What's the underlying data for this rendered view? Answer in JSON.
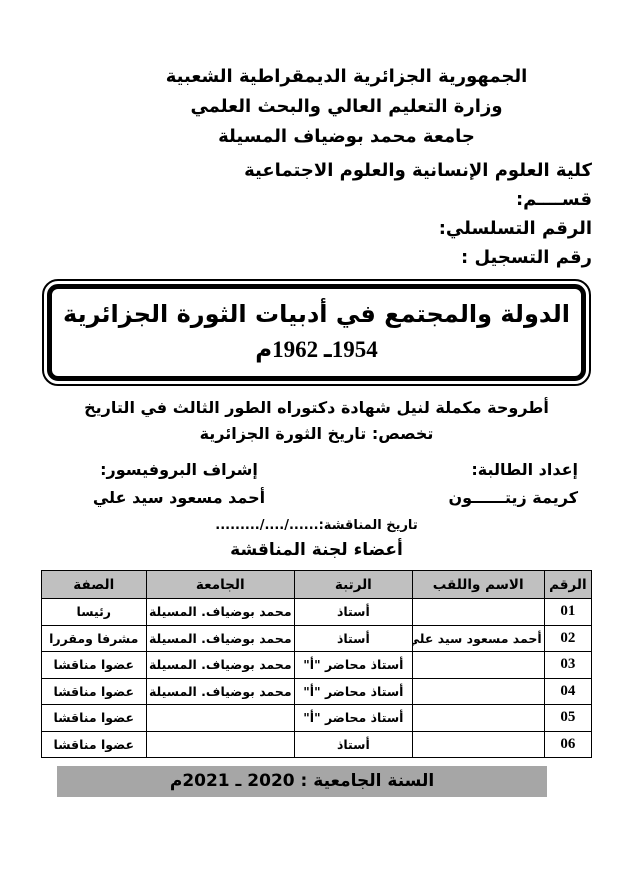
{
  "header_lines": [
    "الجمهورية الجزائرية الديمقراطية الشعبية",
    "وزارة التعليم العالي والبحث العلمي",
    "جامعة محمد بوضياف المسيلة"
  ],
  "right_lines": [
    "كلية العلوم الإنسانية والعلوم الاجتماعية",
    "قســــم:",
    "الرقم التسلسلي:",
    "رقم التسجيل :"
  ],
  "title": {
    "line1": "الدولة والمجتمع في أدبيات الثورة الجزائرية",
    "line2": "1954ـ 1962م"
  },
  "subtitle": "أطروحة مكملة لنيل شهادة دكتوراه الطور الثالث في التاريخ",
  "specialty": "تخصص: تاريخ الثورة الجزائرية",
  "student": {
    "label": "إعداد الطالبة:",
    "name": "كريمة زيتــــــون"
  },
  "supervisor": {
    "label": "إشراف البروفيسور:",
    "name": "أحمد مسعود سيد علي"
  },
  "defense_date": "تاريخ المناقشة:....../..../.........",
  "committee_heading": "أعضاء لجنة المناقشة",
  "table": {
    "headers": [
      "الرقم",
      "الاسم واللقب",
      "الرتبة",
      "الجامعة",
      "الصفة"
    ],
    "rows": [
      [
        "01",
        "",
        "أستاذ",
        "محمد بوضياف. المسيلة",
        "رئيسا"
      ],
      [
        "02",
        "أحمد مسعود سيد علي",
        "أستاذ",
        "محمد بوضياف. المسيلة",
        "مشرفا ومقررا"
      ],
      [
        "03",
        "",
        "أستاذ محاضر \"أ\"",
        "محمد بوضياف. المسيلة",
        "عضوا مناقشا"
      ],
      [
        "04",
        "",
        "أستاذ محاضر \"أ\"",
        "محمد بوضياف. المسيلة",
        "عضوا مناقشا"
      ],
      [
        "05",
        "",
        "أستاذ محاضر \"أ\"",
        "",
        "عضوا مناقشا"
      ],
      [
        "06",
        "",
        "أستاذ",
        "",
        "عضوا مناقشا"
      ]
    ]
  },
  "footer": "السنة الجامعية : 2020 ـ 2021م",
  "colors": {
    "table_header_bg": "#c0c0c0",
    "footer_bg": "#a6a6a6",
    "ink": "#000000"
  }
}
